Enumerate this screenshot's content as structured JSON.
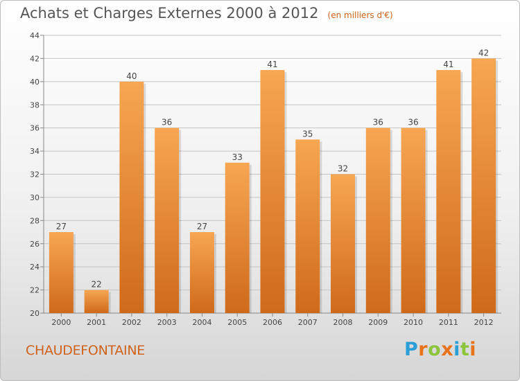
{
  "header": {
    "title": "Achats et Charges Externes 2000 à 2012",
    "subtitle": "(en milliers d'€)"
  },
  "footer": {
    "commune": "CHAUDEFONTAINE",
    "logo_letters": [
      "P",
      "r",
      "o",
      "x",
      "i",
      "t",
      "i"
    ],
    "logo_colors": [
      "#2a9fd6",
      "#e8731a",
      "#8cc43c",
      "#e8731a",
      "#2a9fd6",
      "#8cc43c",
      "#e8731a"
    ]
  },
  "colors": {
    "bar_top": "#f7a652",
    "bar_bottom": "#cf6a1a",
    "grid": "#c4c4c4",
    "axis_text": "#444444"
  },
  "chart_data": {
    "type": "bar",
    "categories": [
      "2000",
      "2001",
      "2002",
      "2003",
      "2004",
      "2005",
      "2006",
      "2007",
      "2008",
      "2009",
      "2010",
      "2011",
      "2012"
    ],
    "values": [
      27,
      22,
      40,
      36,
      27,
      33,
      41,
      35,
      32,
      36,
      36,
      41,
      42
    ],
    "ylim": [
      20,
      44
    ],
    "yticks": [
      20,
      22,
      24,
      26,
      28,
      30,
      32,
      34,
      36,
      38,
      40,
      42,
      44
    ],
    "grid": true,
    "data_labels": true
  }
}
